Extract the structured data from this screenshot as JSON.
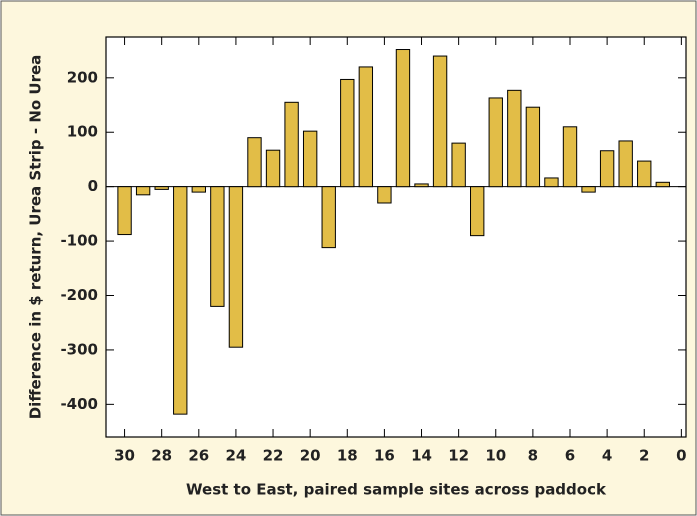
{
  "chart_data": {
    "type": "bar",
    "x_label": "West to East, paired sample sites across paddock",
    "y_label": "Difference in $ return, Urea Strip - No Urea",
    "x": [
      30,
      29,
      28,
      27,
      26,
      25,
      24,
      23,
      22,
      21,
      20,
      19,
      18,
      17,
      16,
      15,
      14,
      13,
      12,
      11,
      10,
      9,
      8,
      7,
      6,
      5,
      4,
      3,
      2,
      1
    ],
    "values": [
      -88,
      -15,
      -5,
      -418,
      -10,
      -220,
      -295,
      90,
      67,
      155,
      102,
      -112,
      197,
      220,
      -30,
      252,
      5,
      240,
      80,
      -90,
      163,
      177,
      146,
      16,
      110,
      -10,
      66,
      84,
      47,
      8
    ],
    "color": "#e2bd47",
    "xlim": [
      31,
      -0.25
    ],
    "xticks": [
      30,
      28,
      26,
      24,
      22,
      20,
      18,
      16,
      14,
      12,
      10,
      8,
      6,
      4,
      2,
      0
    ],
    "ylim": [
      -460,
      275
    ],
    "yticks": [
      -400,
      -300,
      -200,
      -100,
      0,
      100,
      200
    ]
  }
}
